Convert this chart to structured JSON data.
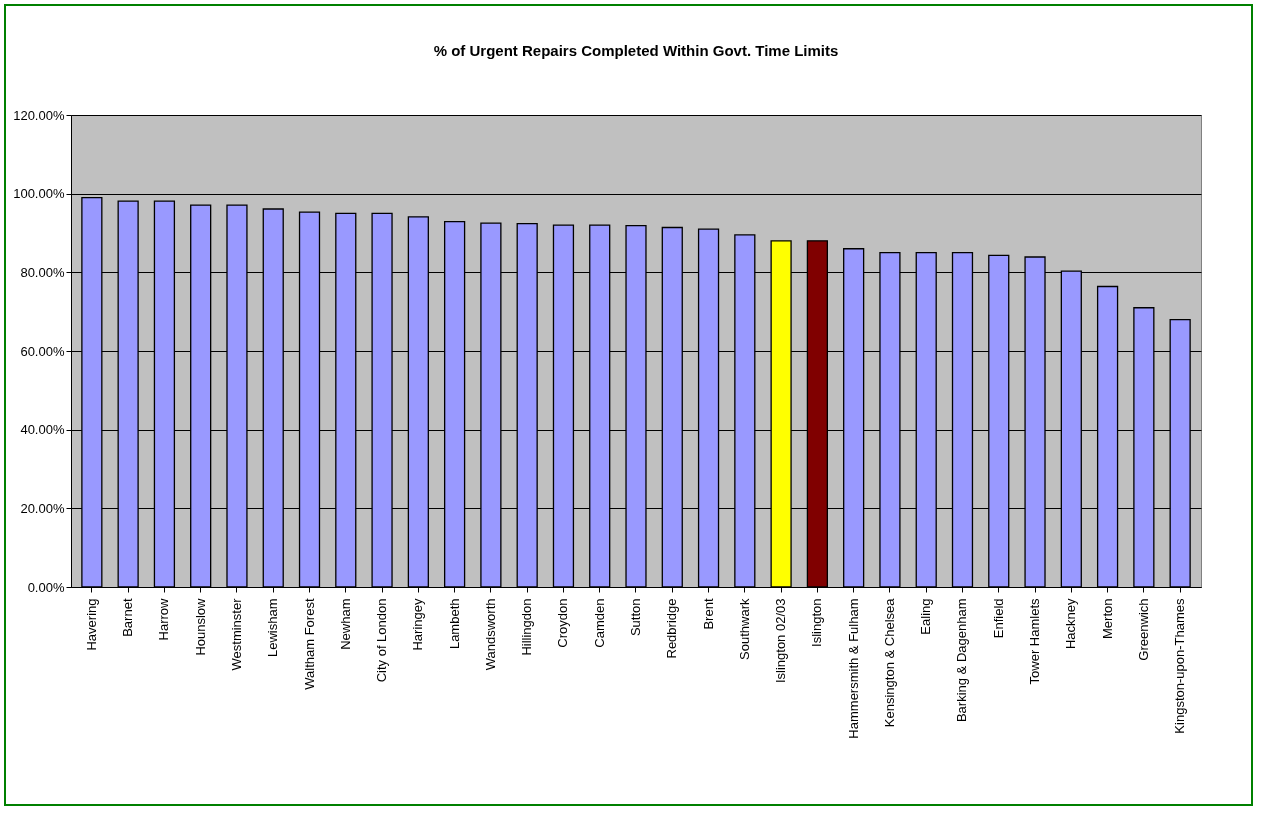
{
  "chart_data": {
    "type": "bar",
    "title": "% of Urgent Repairs Completed Within Govt. Time Limits",
    "categories": [
      "Havering",
      "Barnet",
      "Harrow",
      "Hounslow",
      "Westminster",
      "Lewisham",
      "Waltham Forest",
      "Newham",
      "City of London",
      "Haringey",
      "Lambeth",
      "Wandsworth",
      "Hillingdon",
      "Croydon",
      "Camden",
      "Sutton",
      "Redbridge",
      "Brent",
      "Southwark",
      "Islington 02/03",
      "Islington",
      "Hammersmith & Fulham",
      "Kensington & Chelsea",
      "Ealing",
      "Barking & Dagenham",
      "Enfield",
      "Tower Hamlets",
      "Hackney",
      "Merton",
      "Greenwich",
      "Kingston-upon-Thames"
    ],
    "values": [
      99.0,
      98.1,
      98.1,
      97.1,
      97.1,
      96.1,
      95.3,
      95.0,
      95.0,
      94.1,
      92.9,
      92.5,
      92.4,
      92.0,
      92.0,
      91.9,
      91.4,
      91.0,
      89.5,
      88.0,
      88.0,
      86.0,
      85.0,
      85.0,
      85.0,
      84.3,
      83.9,
      80.3,
      76.4,
      71.0,
      68.0
    ],
    "colors": [
      "#9999ff",
      "#9999ff",
      "#9999ff",
      "#9999ff",
      "#9999ff",
      "#9999ff",
      "#9999ff",
      "#9999ff",
      "#9999ff",
      "#9999ff",
      "#9999ff",
      "#9999ff",
      "#9999ff",
      "#9999ff",
      "#9999ff",
      "#9999ff",
      "#9999ff",
      "#9999ff",
      "#9999ff",
      "#ffff00",
      "#800000",
      "#9999ff",
      "#9999ff",
      "#9999ff",
      "#9999ff",
      "#9999ff",
      "#9999ff",
      "#9999ff",
      "#9999ff",
      "#9999ff",
      "#9999ff"
    ],
    "ylim": [
      0,
      120
    ],
    "yticks": [
      {
        "value": 0,
        "label": "0.00%"
      },
      {
        "value": 20,
        "label": "20.00%"
      },
      {
        "value": 40,
        "label": "40.00%"
      },
      {
        "value": 60,
        "label": "60.00%"
      },
      {
        "value": 80,
        "label": "80.00%"
      },
      {
        "value": 100,
        "label": "100.00%"
      },
      {
        "value": 120,
        "label": "120.00%"
      }
    ],
    "grid": "y"
  }
}
